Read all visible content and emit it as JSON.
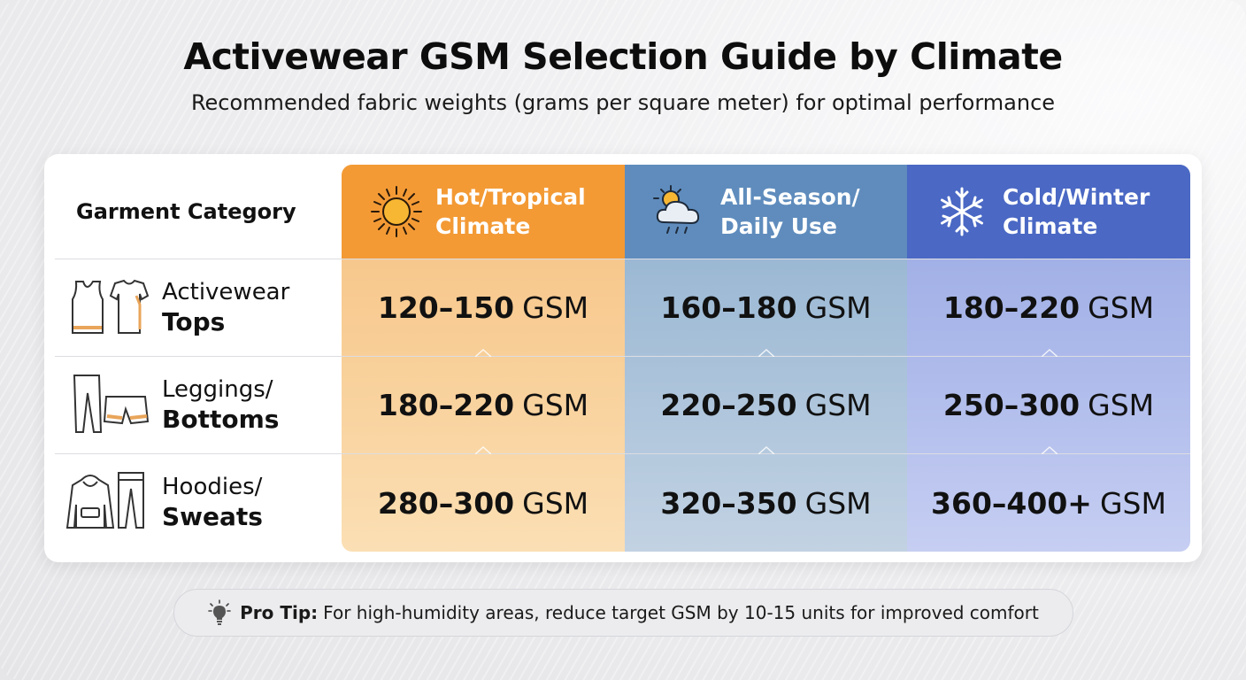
{
  "title": "Activewear GSM Selection Guide by Climate",
  "subtitle": "Recommended fabric weights (grams per square meter) for optimal performance",
  "table": {
    "category_header": "Garment Category",
    "columns": [
      {
        "label_line1": "Hot/Tropical",
        "label_line2": "Climate",
        "icon": "sun-icon",
        "color": "#f39a35"
      },
      {
        "label_line1": "All-Season/",
        "label_line2": "Daily Use",
        "icon": "sun-cloud-rain-icon",
        "color": "#5f8cbd"
      },
      {
        "label_line1": "Cold/Winter",
        "label_line2": "Climate",
        "icon": "snowflake-icon",
        "color": "#4a68c4"
      }
    ],
    "rows": [
      {
        "name_line1": "Activewear",
        "name_line2": "Tops",
        "icon": "tank-top-tshirt-icon",
        "values": [
          {
            "num": "120–150",
            "unit": "GSM"
          },
          {
            "num": "160–180",
            "unit": "GSM"
          },
          {
            "num": "180–220",
            "unit": "GSM"
          }
        ]
      },
      {
        "name_line1": "Leggings/",
        "name_line2": "Bottoms",
        "icon": "leggings-shorts-icon",
        "values": [
          {
            "num": "180–220",
            "unit": "GSM"
          },
          {
            "num": "220–250",
            "unit": "GSM"
          },
          {
            "num": "250–300",
            "unit": "GSM"
          }
        ]
      },
      {
        "name_line1": "Hoodies/",
        "name_line2": "Sweats",
        "icon": "hoodie-sweatpants-icon",
        "values": [
          {
            "num": "280–300",
            "unit": "GSM"
          },
          {
            "num": "320–350",
            "unit": "GSM"
          },
          {
            "num": "360–400+",
            "unit": "GSM"
          }
        ]
      }
    ]
  },
  "tip": {
    "label": "Pro Tip:",
    "text": "For high-humidity areas, reduce target GSM by 10-15 units for improved comfort",
    "icon": "lightbulb-icon"
  }
}
